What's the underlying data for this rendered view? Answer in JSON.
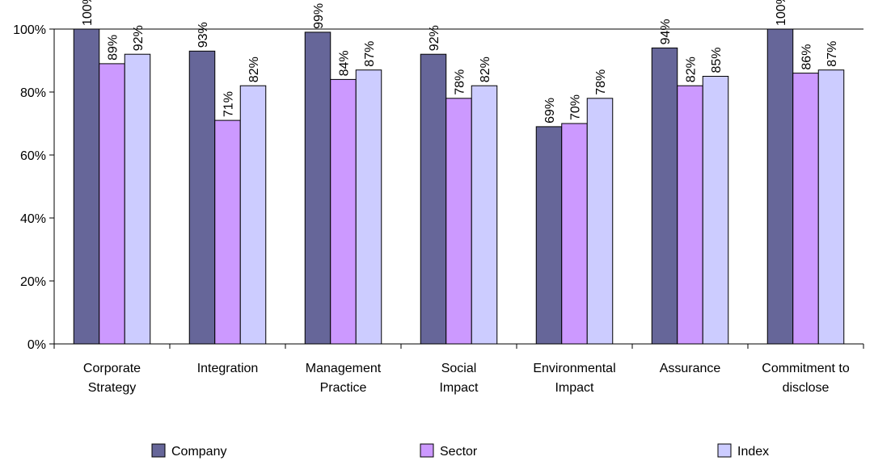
{
  "chart_data": {
    "type": "bar",
    "categories": [
      [
        "Corporate",
        "Strategy"
      ],
      [
        "Integration"
      ],
      [
        "Management",
        "Practice"
      ],
      [
        "Social",
        "Impact"
      ],
      [
        "Environmental",
        "Impact"
      ],
      [
        "Assurance"
      ],
      [
        "Commitment to",
        "disclose"
      ]
    ],
    "series": [
      {
        "name": "Company",
        "color": "#666699",
        "values": [
          100,
          93,
          99,
          92,
          69,
          94,
          100
        ]
      },
      {
        "name": "Sector",
        "color": "#CC99FF",
        "values": [
          89,
          71,
          84,
          78,
          70,
          82,
          86
        ]
      },
      {
        "name": "Index",
        "color": "#CCCCFF",
        "values": [
          92,
          82,
          87,
          82,
          78,
          85,
          87
        ]
      }
    ],
    "ylim": [
      0,
      100
    ],
    "yticks": [
      0,
      20,
      40,
      60,
      80,
      100
    ],
    "ytick_suffix": "%",
    "data_label_suffix": "%",
    "grid": false,
    "legend_position": "bottom"
  }
}
